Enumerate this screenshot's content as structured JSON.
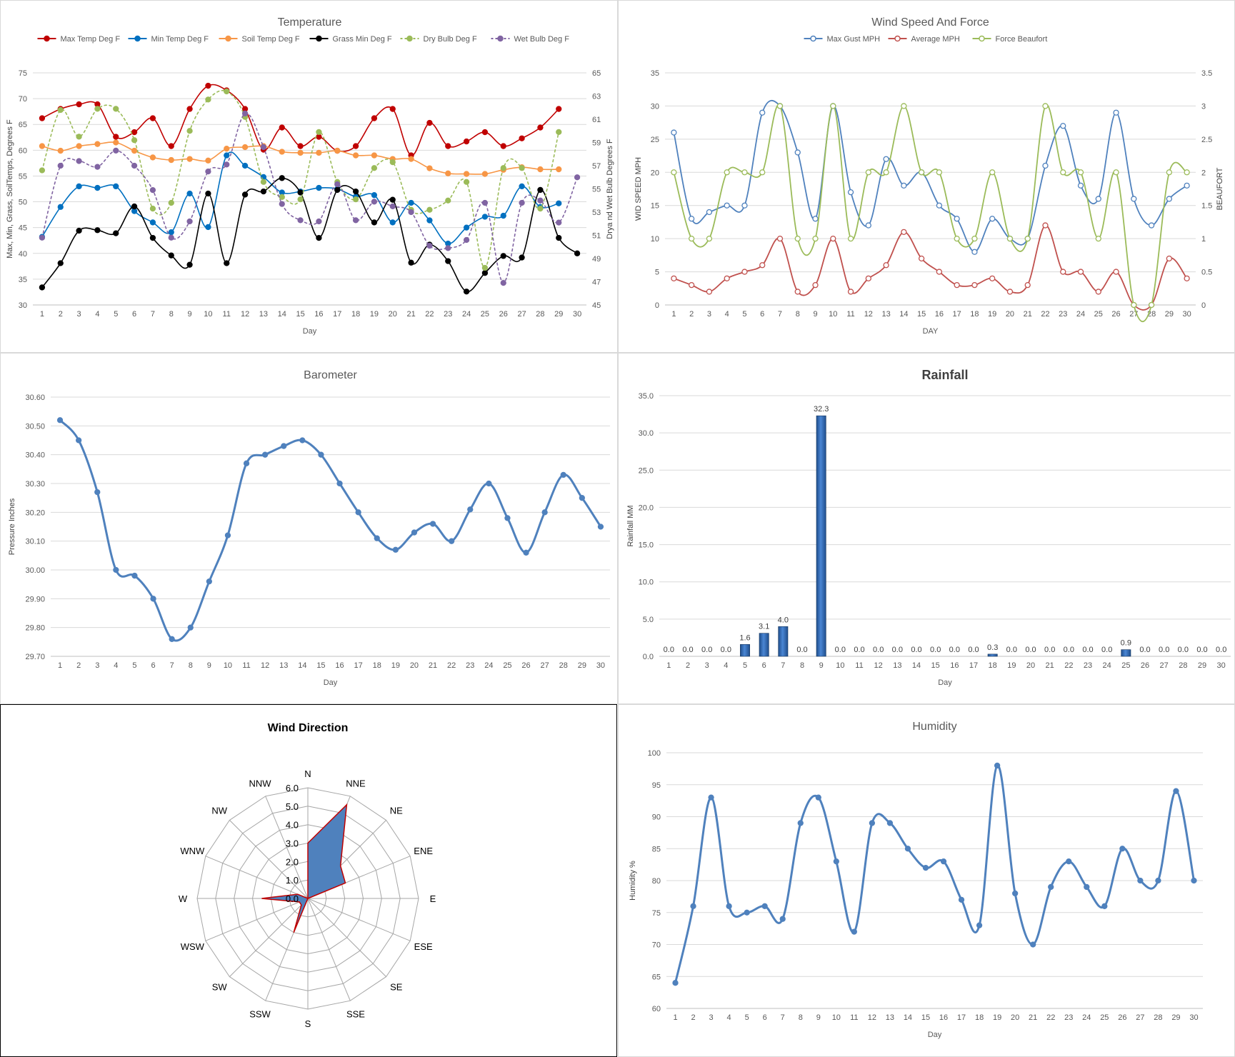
{
  "chart_data": [
    {
      "id": "temp",
      "type": "line",
      "title": "Temperature",
      "xlabel": "Day",
      "ylabel": "Max, Min, Grass, SoilTemps, Degrees F",
      "ylabel2": "Drya nd Wet Bulb Degrees F",
      "x": [
        1,
        2,
        3,
        4,
        5,
        6,
        7,
        8,
        9,
        10,
        11,
        12,
        13,
        14,
        15,
        16,
        17,
        18,
        19,
        20,
        21,
        22,
        23,
        24,
        25,
        26,
        27,
        28,
        29,
        30
      ],
      "ylim": [
        30,
        75
      ],
      "yticks": [
        30,
        35,
        40,
        45,
        50,
        55,
        60,
        65,
        70,
        75
      ],
      "ylim2": [
        45,
        65
      ],
      "yticks2": [
        45,
        47,
        49,
        51,
        53,
        55,
        57,
        59,
        61,
        63,
        65
      ],
      "legend_position": "top",
      "series": [
        {
          "name": "Max Temp Deg F",
          "color": "#c00000",
          "axis": "left",
          "dash": false,
          "values": [
            66.2,
            68,
            68.9,
            68.9,
            62.6,
            63.5,
            66.2,
            60.8,
            68,
            72.5,
            71.6,
            68,
            60.1,
            64.4,
            60.8,
            62.6,
            59.9,
            60.8,
            66.2,
            68,
            59,
            65.3,
            60.8,
            61.7,
            63.5,
            60.8,
            62.3,
            64.4,
            68,
            null
          ]
        },
        {
          "name": "Min Temp Deg F",
          "color": "#0070c0",
          "axis": "left",
          "dash": false,
          "values": [
            43.2,
            49,
            53,
            52.7,
            53,
            48.2,
            46,
            44.1,
            51.6,
            45.1,
            59,
            57,
            54.8,
            51.8,
            52,
            52.7,
            52.5,
            51,
            51.3,
            46,
            49.8,
            46.4,
            41.9,
            45,
            47.1,
            47.3,
            53,
            49,
            49.7,
            null
          ]
        },
        {
          "name": "Soil Temp Deg F",
          "color": "#f79646",
          "axis": "left",
          "dash": false,
          "values": [
            60.8,
            59.9,
            60.8,
            61.2,
            61.5,
            59.9,
            58.6,
            58.1,
            58.3,
            58,
            60.3,
            60.6,
            60.8,
            59.7,
            59.5,
            59.5,
            59.9,
            59,
            59,
            58.3,
            58.3,
            56.5,
            55.5,
            55.4,
            55.4,
            56.2,
            56.7,
            56.3,
            56.3,
            null
          ]
        },
        {
          "name": "Grass Min Deg F",
          "color": "#000000",
          "axis": "left",
          "dash": false,
          "values": [
            33.4,
            38.1,
            44.4,
            44.5,
            43.9,
            49.1,
            43,
            39.6,
            37.8,
            51.6,
            38.1,
            51.4,
            52,
            54.6,
            51.8,
            43,
            52.3,
            52,
            46,
            50.4,
            38.2,
            41.7,
            38.5,
            32.6,
            36.2,
            39.5,
            39.2,
            52.3,
            43,
            40
          ]
        },
        {
          "name": "Dry Bulb Deg F",
          "color": "#9bbb59",
          "axis": "right",
          "dash": true,
          "values": [
            56.6,
            61.8,
            59.5,
            61.9,
            61.9,
            59.2,
            53.3,
            53.8,
            60,
            62.7,
            63.4,
            61.2,
            55.6,
            54.3,
            54.1,
            59.9,
            55.6,
            54.1,
            56.8,
            57.3,
            53.2,
            53.2,
            54,
            55.6,
            48.2,
            56.8,
            56.8,
            53.3,
            59.9,
            null
          ]
        },
        {
          "name": "Wet Bulb Deg F",
          "color": "#8064a2",
          "axis": "right",
          "dash": true,
          "values": [
            50.8,
            57,
            57.4,
            56.9,
            58.3,
            57,
            54.9,
            50.8,
            52.2,
            56.5,
            57.1,
            61.5,
            58.6,
            53.7,
            52.3,
            52.2,
            55.4,
            52.3,
            53.9,
            53.5,
            53,
            50.1,
            49.9,
            50.6,
            53.8,
            46.9,
            53.8,
            54,
            52.1,
            56
          ]
        }
      ]
    },
    {
      "id": "wind",
      "type": "line",
      "title": "Wind Speed And Force",
      "xlabel": "DAY",
      "ylabel": "WID SPEED MPH",
      "ylabel2": "BEAUFORT",
      "x": [
        1,
        2,
        3,
        4,
        5,
        6,
        7,
        8,
        9,
        10,
        11,
        12,
        13,
        14,
        15,
        16,
        17,
        18,
        19,
        20,
        21,
        22,
        23,
        24,
        25,
        26,
        27,
        28,
        29,
        30
      ],
      "ylim": [
        0,
        35
      ],
      "yticks": [
        0,
        5,
        10,
        15,
        20,
        25,
        30,
        35
      ],
      "ylim2": [
        0,
        3.5
      ],
      "yticks2": [
        "0",
        "0.5",
        "1",
        "1.5",
        "2",
        "2.5",
        "3",
        "3.5"
      ],
      "legend_position": "top",
      "series": [
        {
          "name": "Max Gust MPH",
          "color": "#4f81bd",
          "axis": "left",
          "values": [
            26,
            13,
            14,
            15,
            15,
            29,
            30,
            23,
            13,
            30,
            17,
            12,
            22,
            18,
            20,
            15,
            13,
            8,
            13,
            10,
            10,
            21,
            27,
            18,
            16,
            29,
            16,
            12,
            16,
            18
          ]
        },
        {
          "name": "Average MPH",
          "color": "#c0504d",
          "axis": "left",
          "values": [
            4,
            3,
            2,
            4,
            5,
            6,
            10,
            2,
            3,
            10,
            2,
            4,
            6,
            11,
            7,
            5,
            3,
            3,
            4,
            2,
            3,
            12,
            5,
            5,
            2,
            5,
            0,
            0,
            7,
            4
          ]
        },
        {
          "name": "Force Beaufort",
          "color": "#9bbb59",
          "axis": "right",
          "values": [
            2,
            1,
            1,
            2,
            2,
            2,
            3,
            1,
            1,
            3,
            1,
            2,
            2,
            3,
            2,
            2,
            1,
            1,
            2,
            1,
            1,
            3,
            2,
            2,
            1,
            2,
            0,
            0,
            2,
            2
          ]
        }
      ]
    },
    {
      "id": "baro",
      "type": "line",
      "title": "Barometer",
      "xlabel": "Day",
      "ylabel": "Pressure Inches",
      "x": [
        1,
        2,
        3,
        4,
        5,
        6,
        7,
        8,
        9,
        10,
        11,
        12,
        13,
        14,
        15,
        16,
        17,
        18,
        19,
        20,
        21,
        22,
        23,
        24,
        25,
        26,
        27,
        28,
        29,
        30
      ],
      "ylim": [
        29.7,
        30.6
      ],
      "yticks": [
        "29.70",
        "29.80",
        "29.90",
        "30.00",
        "30.10",
        "30.20",
        "30.30",
        "30.40",
        "30.50",
        "30.60"
      ],
      "series": [
        {
          "color": "#4f81bd",
          "values": [
            30.52,
            30.45,
            30.27,
            30.0,
            29.98,
            29.9,
            29.76,
            29.8,
            29.96,
            30.12,
            30.37,
            30.4,
            30.43,
            30.45,
            30.4,
            30.3,
            30.2,
            30.11,
            30.07,
            30.13,
            30.16,
            30.1,
            30.21,
            30.3,
            30.18,
            30.06,
            30.2,
            30.33,
            30.25,
            30.15
          ]
        }
      ]
    },
    {
      "id": "rain",
      "type": "bar",
      "title": "Rainfall",
      "xlabel": "Day",
      "ylabel": "Rainfall MM",
      "categories": [
        "1",
        "2",
        "3",
        "4",
        "5",
        "6",
        "7",
        "8",
        "9",
        "10",
        "11",
        "12",
        "13",
        "14",
        "15",
        "16",
        "17",
        "18",
        "19",
        "20",
        "21",
        "22",
        "23",
        "24",
        "25",
        "26",
        "27",
        "28",
        "29",
        "30"
      ],
      "ylim": [
        0,
        35
      ],
      "yticks": [
        "0.0",
        "5.0",
        "10.0",
        "15.0",
        "20.0",
        "25.0",
        "30.0",
        "35.0"
      ],
      "values": [
        0,
        0,
        0,
        0,
        1.6,
        3.1,
        4.0,
        0,
        32.3,
        0,
        0,
        0,
        0,
        0,
        0,
        0,
        0,
        0.3,
        0,
        0,
        0,
        0,
        0,
        0,
        0.9,
        0,
        0,
        0,
        0,
        0
      ],
      "labels": [
        "0.0",
        "0.0",
        "0.0",
        "0.0",
        "1.6",
        "3.1",
        "4.0",
        "0.0",
        "32.3",
        "0.0",
        "0.0",
        "0.0",
        "0.0",
        "0.0",
        "0.0",
        "0.0",
        "0.0",
        "0.3",
        "0.0",
        "0.0",
        "0.0",
        "0.0",
        "0.0",
        "0.0",
        "0.9",
        "0.0",
        "0.0",
        "0.0",
        "0.0",
        "0.0"
      ]
    },
    {
      "id": "dir",
      "type": "radar",
      "title": "Wind Direction",
      "categories": [
        "N",
        "NNE",
        "NE",
        "ENE",
        "E",
        "ESE",
        "SE",
        "SSE",
        "S",
        "SSW",
        "SW",
        "WSW",
        "W",
        "WNW",
        "NW",
        "NNW"
      ],
      "ylim": [
        0,
        6
      ],
      "rticks": [
        "0.0",
        "1.0",
        "2.0",
        "3.0",
        "4.0",
        "5.0",
        "6.0"
      ],
      "fill_color": "#4f81bd",
      "line_color": "#c00000",
      "values": [
        3,
        5.5,
        2.5,
        2.2,
        0,
        0,
        0,
        0,
        0,
        2,
        0.5,
        0.5,
        2.5,
        0.6,
        0,
        0
      ]
    },
    {
      "id": "hum",
      "type": "line",
      "title": "Humidity",
      "xlabel": "Day",
      "ylabel": "Humidity %",
      "x": [
        1,
        2,
        3,
        4,
        5,
        6,
        7,
        8,
        9,
        10,
        11,
        12,
        13,
        14,
        15,
        16,
        17,
        18,
        19,
        20,
        21,
        22,
        23,
        24,
        25,
        26,
        27,
        28,
        29,
        30
      ],
      "ylim": [
        60,
        100
      ],
      "yticks": [
        60,
        65,
        70,
        75,
        80,
        85,
        90,
        95,
        100
      ],
      "series": [
        {
          "color": "#4f81bd",
          "values": [
            64,
            76,
            93,
            76,
            75,
            76,
            74,
            89,
            93,
            83,
            72,
            89,
            89,
            85,
            82,
            83,
            77,
            73,
            98,
            78,
            70,
            79,
            83,
            79,
            76,
            85,
            80,
            80,
            94,
            80
          ]
        }
      ]
    }
  ]
}
